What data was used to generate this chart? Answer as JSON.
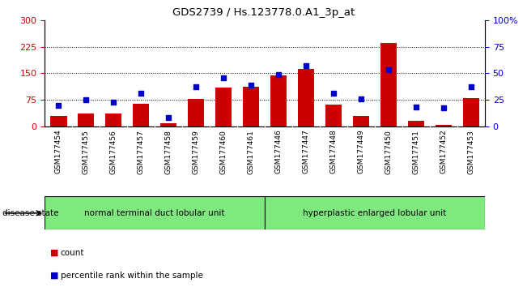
{
  "title": "GDS2739 / Hs.123778.0.A1_3p_at",
  "samples": [
    "GSM177454",
    "GSM177455",
    "GSM177456",
    "GSM177457",
    "GSM177458",
    "GSM177459",
    "GSM177460",
    "GSM177461",
    "GSM177446",
    "GSM177447",
    "GSM177448",
    "GSM177449",
    "GSM177450",
    "GSM177451",
    "GSM177452",
    "GSM177453"
  ],
  "counts": [
    30,
    35,
    37,
    63,
    8,
    78,
    110,
    112,
    143,
    163,
    62,
    30,
    235,
    15,
    5,
    80
  ],
  "percentiles": [
    20,
    25,
    23,
    31,
    8,
    37,
    46,
    39,
    49,
    57,
    31,
    26,
    53,
    18,
    17,
    37
  ],
  "group1_label": "normal terminal duct lobular unit",
  "group2_label": "hyperplastic enlarged lobular unit",
  "group1_count": 8,
  "group2_count": 8,
  "disease_state_label": "disease state",
  "ylim_left": [
    0,
    300
  ],
  "ylim_right": [
    0,
    100
  ],
  "yticks_left": [
    0,
    75,
    150,
    225,
    300
  ],
  "yticks_right": [
    0,
    25,
    50,
    75,
    100
  ],
  "bar_color": "#cc0000",
  "dot_color": "#0000cc",
  "legend_count_label": "count",
  "legend_pct_label": "percentile rank within the sample",
  "group_color": "#7fe87f",
  "xtick_bg_color": "#c8c8c8",
  "ytick_left_color": "#cc0000",
  "ytick_right_color": "#0000cc",
  "plot_bg_color": "#ffffff"
}
